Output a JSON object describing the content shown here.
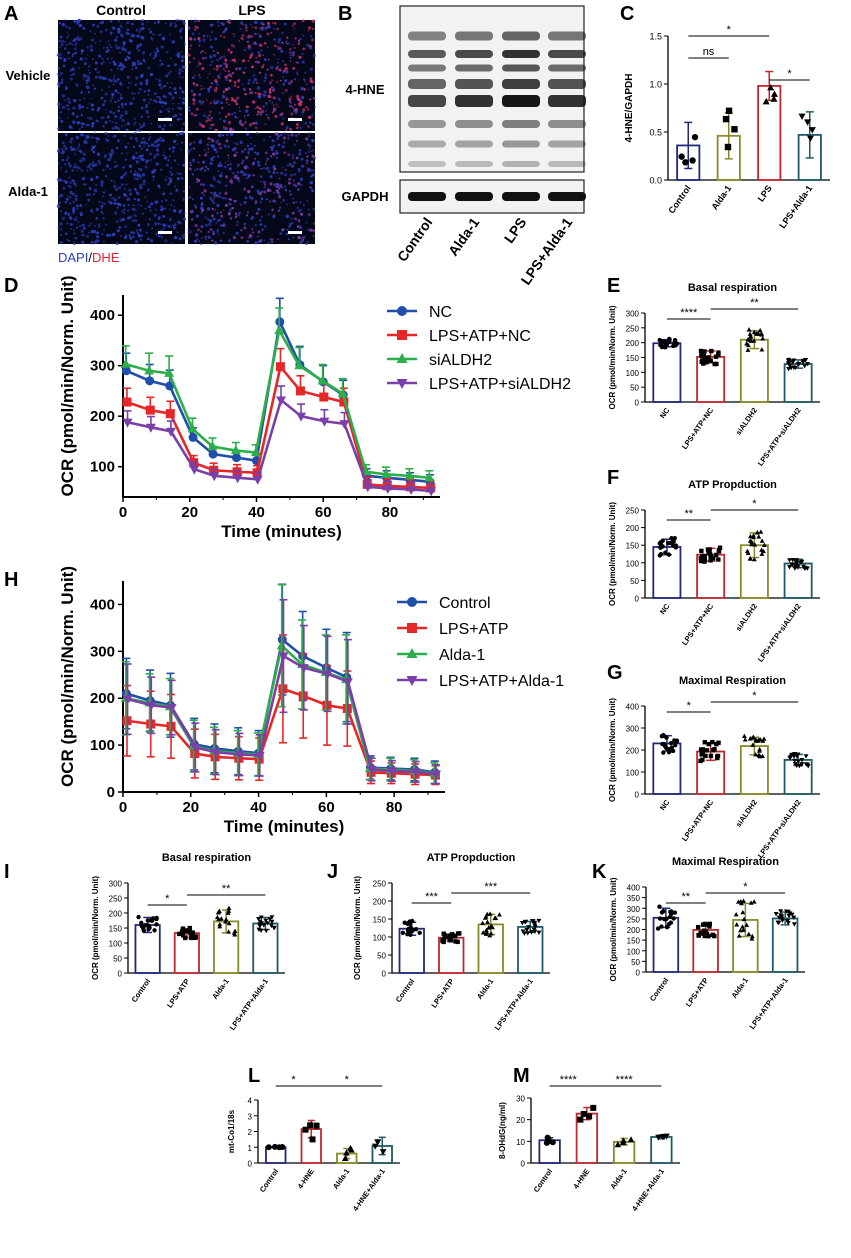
{
  "chart_data": [
    {
      "panel": "A",
      "type": "image-grid",
      "columns": [
        "Control",
        "LPS"
      ],
      "rows": [
        "Vehicle",
        "Alda-1"
      ],
      "legend": {
        "dapi": "DAPI",
        "sep": "/",
        "dhe": "DHE"
      },
      "colors": {
        "dapi": "#2b3fbf",
        "dhe": "#e6253a"
      }
    },
    {
      "panel": "B",
      "type": "blot",
      "bands": [
        "4-HNE",
        "GAPDH"
      ],
      "lanes": [
        "Control",
        "Alda-1",
        "LPS",
        "LPS+Alda-1"
      ]
    },
    {
      "panel": "C",
      "type": "bar",
      "ylabel": "4-HNE/GAPDH",
      "ylim": [
        0,
        1.5
      ],
      "yticks": [
        "0.0",
        "0.5",
        "1.0",
        "1.5"
      ],
      "categories": [
        "Control",
        "Alda-1",
        "LPS",
        "LPS+Alda-1"
      ],
      "values": [
        0.36,
        0.46,
        0.98,
        0.47
      ],
      "errors": [
        0.24,
        0.24,
        0.15,
        0.24
      ],
      "colors": [
        "#1f2a7a",
        "#8a8a2a",
        "#c0282d",
        "#1f5a66"
      ],
      "sig": [
        {
          "from": 0,
          "to": 2,
          "label": "*"
        },
        {
          "from": 0,
          "to": 1,
          "label": "ns"
        },
        {
          "from": 2,
          "to": 3,
          "label": "*"
        }
      ]
    },
    {
      "panel": "D",
      "type": "line",
      "xlabel": "Time (minutes)",
      "ylabel": "OCR (pmol/min/Norm. Unit)",
      "xlim": [
        0,
        95
      ],
      "ylim": [
        40,
        440
      ],
      "xticks": [
        0,
        20,
        40,
        60,
        80
      ],
      "yticks": [
        100,
        200,
        300,
        400
      ],
      "x": [
        1,
        8,
        14,
        21,
        27,
        34,
        40,
        47,
        53,
        60,
        66,
        73,
        79,
        86,
        92
      ],
      "series": [
        {
          "name": "NC",
          "color": "#1f4fa8",
          "marker": "circle",
          "values": [
            290,
            270,
            260,
            158,
            125,
            118,
            112,
            387,
            302,
            268,
            242,
            82,
            78,
            74,
            70
          ]
        },
        {
          "name": "LPS+ATP+NC",
          "color": "#e62727",
          "marker": "square",
          "values": [
            228,
            212,
            205,
            108,
            93,
            90,
            88,
            298,
            250,
            238,
            228,
            65,
            62,
            60,
            58
          ]
        },
        {
          "name": "siALDH2",
          "color": "#2eae4a",
          "marker": "triangle",
          "values": [
            303,
            290,
            285,
            175,
            140,
            132,
            128,
            370,
            300,
            270,
            245,
            90,
            85,
            82,
            78
          ]
        },
        {
          "name": "LPS+ATP+siALDH2",
          "color": "#7b3fa8",
          "marker": "triangle-down",
          "values": [
            188,
            178,
            170,
            95,
            82,
            78,
            75,
            232,
            200,
            190,
            185,
            60,
            57,
            55,
            52
          ]
        }
      ]
    },
    {
      "panel": "E",
      "type": "bar",
      "title": "Basal respiration",
      "ylabel": "OCR (pmol/min/Norm. Unit)",
      "ylim": [
        0,
        300
      ],
      "yticks": [
        "0",
        "50",
        "100",
        "150",
        "200",
        "250",
        "300"
      ],
      "categories": [
        "NC",
        "LPS+ATP+NC",
        "siALDH2",
        "LPS+ATP+siALDH2"
      ],
      "values": [
        198,
        152,
        210,
        128
      ],
      "errors": [
        12,
        20,
        30,
        14
      ],
      "colors": [
        "#1f2a7a",
        "#c0282d",
        "#8a8a2a",
        "#1f5a66"
      ],
      "sig": [
        {
          "from": 0,
          "to": 1,
          "label": "****"
        },
        {
          "from": 1,
          "to": 3,
          "label": "**"
        }
      ]
    },
    {
      "panel": "F",
      "type": "bar",
      "title": "ATP Propduction",
      "ylabel": "OCR (pmol/min/Norm. Unit)",
      "ylim": [
        0,
        250
      ],
      "yticks": [
        "0",
        "50",
        "100",
        "150",
        "200",
        "250"
      ],
      "categories": [
        "NC",
        "LPS+ATP+NC",
        "siALDH2",
        "LPS+ATP+siALDH2"
      ],
      "values": [
        145,
        123,
        150,
        98
      ],
      "errors": [
        22,
        18,
        35,
        12
      ],
      "colors": [
        "#1f2a7a",
        "#c0282d",
        "#8a8a2a",
        "#1f5a66"
      ],
      "sig": [
        {
          "from": 0,
          "to": 1,
          "label": "**"
        },
        {
          "from": 1,
          "to": 3,
          "label": "*"
        }
      ]
    },
    {
      "panel": "G",
      "type": "bar",
      "title": "Maximal Respiration",
      "ylabel": "OCR (pmol/min/Norm. Unit)",
      "ylim": [
        0,
        400
      ],
      "yticks": [
        "0",
        "100",
        "200",
        "300",
        "400"
      ],
      "categories": [
        "NC",
        "LPS+ATP+NC",
        "siALDH2",
        "LPS+ATP+siALDH2"
      ],
      "values": [
        230,
        193,
        218,
        155
      ],
      "errors": [
        35,
        40,
        40,
        25
      ],
      "colors": [
        "#1f2a7a",
        "#c0282d",
        "#8a8a2a",
        "#1f5a66"
      ],
      "sig": [
        {
          "from": 0,
          "to": 1,
          "label": "*"
        },
        {
          "from": 1,
          "to": 3,
          "label": "*"
        }
      ]
    },
    {
      "panel": "H",
      "type": "line",
      "xlabel": "Time (minutes)",
      "ylabel": "OCR (pmol/min/Norm. Unit)",
      "xlim": [
        0,
        95
      ],
      "ylim": [
        0,
        450
      ],
      "xticks": [
        0,
        20,
        40,
        60,
        80
      ],
      "yticks": [
        0,
        100,
        200,
        300,
        400
      ],
      "x": [
        1,
        8,
        14,
        21,
        27,
        34,
        40,
        47,
        53,
        60,
        66,
        73,
        79,
        86,
        92
      ],
      "series": [
        {
          "name": "Control",
          "color": "#1f4fa8",
          "marker": "circle",
          "values": [
            210,
            195,
            185,
            102,
            93,
            87,
            83,
            325,
            290,
            265,
            245,
            52,
            50,
            48,
            42
          ],
          "errors": [
            75,
            65,
            68,
            55,
            52,
            50,
            48,
            118,
            95,
            82,
            95,
            25,
            24,
            24,
            24
          ]
        },
        {
          "name": "LPS+ATP",
          "color": "#e62727",
          "marker": "square",
          "values": [
            152,
            145,
            140,
            82,
            75,
            72,
            70,
            220,
            205,
            185,
            178,
            42,
            40,
            38,
            36
          ],
          "errors": [
            75,
            70,
            68,
            52,
            48,
            46,
            45,
            115,
            90,
            85,
            80,
            24,
            22,
            22,
            20
          ]
        },
        {
          "name": "Alda-1",
          "color": "#2eae4a",
          "marker": "triangle",
          "values": [
            200,
            190,
            182,
            98,
            88,
            83,
            80,
            312,
            272,
            255,
            240,
            50,
            48,
            45,
            40
          ],
          "errors": [
            78,
            62,
            60,
            55,
            50,
            48,
            46,
            130,
            95,
            80,
            95,
            24,
            24,
            24,
            22
          ]
        },
        {
          "name": "LPS+ATP+Alda-1",
          "color": "#7b3fa8",
          "marker": "triangle-down",
          "values": [
            198,
            185,
            180,
            95,
            85,
            80,
            78,
            290,
            265,
            252,
            235,
            48,
            45,
            43,
            38
          ],
          "errors": [
            75,
            60,
            58,
            52,
            48,
            45,
            44,
            120,
            90,
            80,
            90,
            24,
            22,
            22,
            20
          ]
        }
      ]
    },
    {
      "panel": "I",
      "type": "bar",
      "title": "Basal respiration",
      "ylabel": "OCR (pmol/min/Norm. Unit)",
      "ylim": [
        0,
        300
      ],
      "yticks": [
        "0",
        "50",
        "100",
        "150",
        "200",
        "250",
        "300"
      ],
      "categories": [
        "Control",
        "LPS+ATP",
        "Alda-1",
        "LPS+ATP+Alda-1"
      ],
      "values": [
        160,
        133,
        172,
        165
      ],
      "errors": [
        25,
        15,
        38,
        20
      ],
      "colors": [
        "#1f2a7a",
        "#c0282d",
        "#8a8a2a",
        "#1f5a66"
      ],
      "sig": [
        {
          "from": 0,
          "to": 1,
          "label": "*"
        },
        {
          "from": 1,
          "to": 3,
          "label": "**"
        }
      ]
    },
    {
      "panel": "J",
      "type": "bar",
      "title": "ATP Propduction",
      "ylabel": "OCR (pmol/min/Norm. Unit)",
      "ylim": [
        0,
        250
      ],
      "yticks": [
        "0",
        "50",
        "100",
        "150",
        "200",
        "250"
      ],
      "categories": [
        "Control",
        "LPS+ATP",
        "Alda-1",
        "LPS+ATP+Alda-1"
      ],
      "values": [
        123,
        98,
        135,
        128
      ],
      "errors": [
        18,
        10,
        28,
        15
      ],
      "colors": [
        "#1f2a7a",
        "#c0282d",
        "#8a8a2a",
        "#1f5a66"
      ],
      "sig": [
        {
          "from": 0,
          "to": 1,
          "label": "***"
        },
        {
          "from": 1,
          "to": 3,
          "label": "***"
        }
      ]
    },
    {
      "panel": "K",
      "type": "bar",
      "title": "Maximal Respiration",
      "ylabel": "OCR (pmol/min/Norm. Unit)",
      "ylim": [
        0,
        400
      ],
      "yticks": [
        "0",
        "50",
        "100",
        "150",
        "200",
        "250",
        "300",
        "350",
        "400"
      ],
      "categories": [
        "Control",
        "LPS+ATP",
        "Alda-1",
        "LPS+ATP+Alda-1"
      ],
      "values": [
        255,
        198,
        245,
        252
      ],
      "errors": [
        45,
        25,
        78,
        30
      ],
      "colors": [
        "#1f2a7a",
        "#c0282d",
        "#8a8a2a",
        "#1f5a66"
      ],
      "sig": [
        {
          "from": 0,
          "to": 1,
          "label": "**"
        },
        {
          "from": 1,
          "to": 3,
          "label": "*"
        }
      ]
    },
    {
      "panel": "L",
      "type": "bar",
      "ylabel": "mt-Co1/18s",
      "ylim": [
        0,
        4
      ],
      "yticks": [
        "0",
        "1",
        "2",
        "3",
        "4"
      ],
      "categories": [
        "Control",
        "4-HNE",
        "Alda-1",
        "4-HNE+Alda-1"
      ],
      "values": [
        1.0,
        2.15,
        0.6,
        1.08
      ],
      "errors": [
        0.02,
        0.55,
        0.32,
        0.55
      ],
      "colors": [
        "#1f2a7a",
        "#c0282d",
        "#8a8a2a",
        "#1f5a66"
      ],
      "sig": [
        {
          "from": 0,
          "to": 1,
          "label": "*"
        },
        {
          "from": 1,
          "to": 3,
          "label": "*"
        }
      ]
    },
    {
      "panel": "M",
      "type": "bar",
      "ylabel": "8-OHdG(ng/ml)",
      "ylim": [
        0,
        30
      ],
      "yticks": [
        "0",
        "10",
        "20",
        "30"
      ],
      "categories": [
        "Control",
        "4-HNE",
        "Alda-1",
        "4-HNE+Alda-1"
      ],
      "values": [
        10.5,
        22.8,
        9.8,
        12.0
      ],
      "errors": [
        1.2,
        2.8,
        1.5,
        0.8
      ],
      "colors": [
        "#1f2a7a",
        "#c0282d",
        "#8a8a2a",
        "#1f5a66"
      ],
      "sig": [
        {
          "from": 0,
          "to": 1,
          "label": "****"
        },
        {
          "from": 1,
          "to": 3,
          "label": "****"
        }
      ]
    }
  ]
}
